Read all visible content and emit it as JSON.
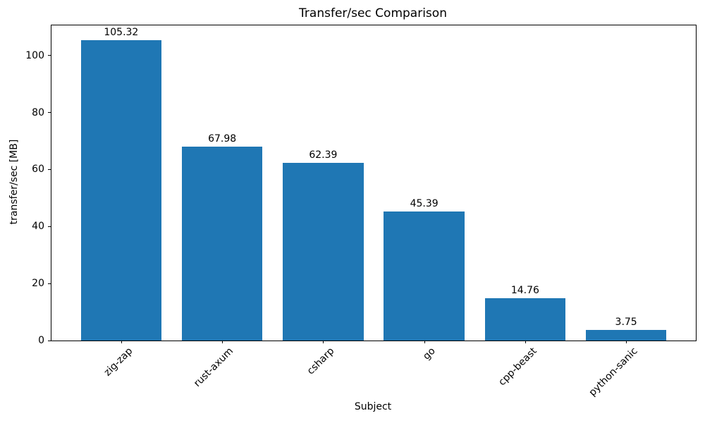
{
  "figure": {
    "background_color": "#ffffff",
    "spine_color": "#000000",
    "text_color": "#000000"
  },
  "chart_data": {
    "type": "bar",
    "title": "Transfer/sec Comparison",
    "xlabel": "Subject",
    "ylabel": "transfer/sec [MB]",
    "categories": [
      "zig-zap",
      "rust-axum",
      "csharp",
      "go",
      "cpp-beast",
      "python-sanic"
    ],
    "values": [
      105.32,
      67.98,
      62.39,
      45.39,
      14.76,
      3.75
    ],
    "value_labels": [
      "105.32",
      "67.98",
      "62.39",
      "45.39",
      "14.76",
      "3.75"
    ],
    "yticks": [
      0,
      20,
      40,
      60,
      80,
      100
    ],
    "ytick_labels": [
      "0",
      "20",
      "40",
      "60",
      "80",
      "100"
    ],
    "ylim": [
      0,
      110.586
    ],
    "bar_color": "#1f77b4",
    "bar_width_ratio": 0.8,
    "xtick_rotation_deg": 45,
    "grid": false,
    "legend": null
  }
}
